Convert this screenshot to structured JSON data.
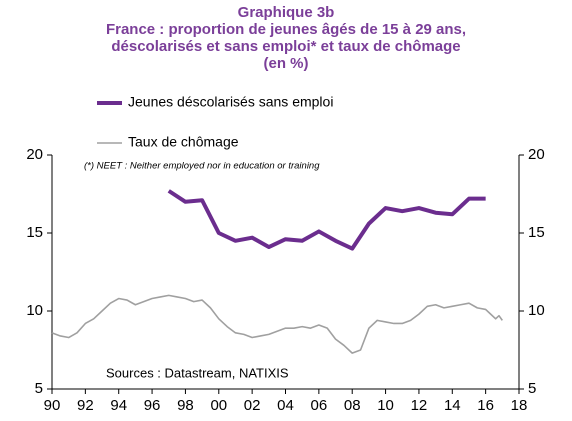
{
  "chart_data": {
    "type": "line",
    "title": "Graphique 3b",
    "subtitle": [
      "France : proportion de jeunes âgés de 15 à 29 ans,",
      "déscolarisés et sans emploi* et taux de chômage",
      "(en %)"
    ],
    "annotations": [
      "(*) NEET : Neither employed nor in education or training",
      "Sources : Datastream, NATIXIS"
    ],
    "xlim": [
      1990,
      2018
    ],
    "xticks": [
      {
        "value": 1990,
        "label": "90"
      },
      {
        "value": 1992,
        "label": "92"
      },
      {
        "value": 1994,
        "label": "94"
      },
      {
        "value": 1996,
        "label": "96"
      },
      {
        "value": 1998,
        "label": "98"
      },
      {
        "value": 2000,
        "label": "00"
      },
      {
        "value": 2002,
        "label": "02"
      },
      {
        "value": 2004,
        "label": "04"
      },
      {
        "value": 2006,
        "label": "06"
      },
      {
        "value": 2008,
        "label": "08"
      },
      {
        "value": 2010,
        "label": "10"
      },
      {
        "value": 2012,
        "label": "12"
      },
      {
        "value": 2014,
        "label": "14"
      },
      {
        "value": 2016,
        "label": "16"
      },
      {
        "value": 2018,
        "label": "18"
      }
    ],
    "ylim": [
      5,
      20
    ],
    "yticks": [
      5,
      10,
      15,
      20
    ],
    "y2lim": [
      5,
      20
    ],
    "y2ticks": [
      5,
      10,
      15,
      20
    ],
    "series": [
      {
        "name": "Jeunes déscolarisés sans emploi",
        "color": "#6b2d8e",
        "axis": "y2",
        "x": [
          1997,
          1998,
          1999,
          2000,
          2001,
          2002,
          2003,
          2004,
          2005,
          2006,
          2007,
          2008,
          2009,
          2010,
          2011,
          2012,
          2013,
          2014,
          2015,
          2016
        ],
        "values": [
          17.7,
          17.0,
          17.1,
          15.0,
          14.5,
          14.7,
          14.1,
          14.6,
          14.5,
          15.1,
          14.5,
          14.0,
          15.6,
          16.6,
          16.4,
          16.6,
          16.3,
          16.2,
          17.2,
          17.2
        ]
      },
      {
        "name": "Taux de chômage",
        "color": "#a0a0a0",
        "x": [
          1990,
          1990.5,
          1991,
          1991.5,
          1992,
          1992.5,
          1993,
          1993.5,
          1994,
          1994.5,
          1995,
          1995.5,
          1996,
          1996.5,
          1997,
          1997.5,
          1998,
          1998.5,
          1999,
          1999.5,
          2000,
          2000.5,
          2001,
          2001.5,
          2002,
          2002.5,
          2003,
          2003.5,
          2004,
          2004.5,
          2005,
          2005.5,
          2006,
          2006.5,
          2007,
          2007.5,
          2008,
          2008.5,
          2009,
          2009.5,
          2010,
          2010.5,
          2011,
          2011.5,
          2012,
          2012.5,
          2013,
          2013.5,
          2014,
          2014.5,
          2015,
          2015.5,
          2016,
          2016.3,
          2016.6,
          2016.8,
          2017
        ],
        "values": [
          8.6,
          8.4,
          8.3,
          8.6,
          9.2,
          9.5,
          10.0,
          10.5,
          10.8,
          10.7,
          10.4,
          10.6,
          10.8,
          10.9,
          11.0,
          10.9,
          10.8,
          10.6,
          10.7,
          10.2,
          9.5,
          9.0,
          8.6,
          8.5,
          8.3,
          8.4,
          8.5,
          8.7,
          8.9,
          8.9,
          9.0,
          8.9,
          9.1,
          8.9,
          8.2,
          7.8,
          7.3,
          7.5,
          8.9,
          9.4,
          9.3,
          9.2,
          9.2,
          9.4,
          9.8,
          10.3,
          10.4,
          10.2,
          10.3,
          10.4,
          10.5,
          10.2,
          10.1,
          9.8,
          9.5,
          9.7,
          9.4
        ]
      }
    ]
  }
}
